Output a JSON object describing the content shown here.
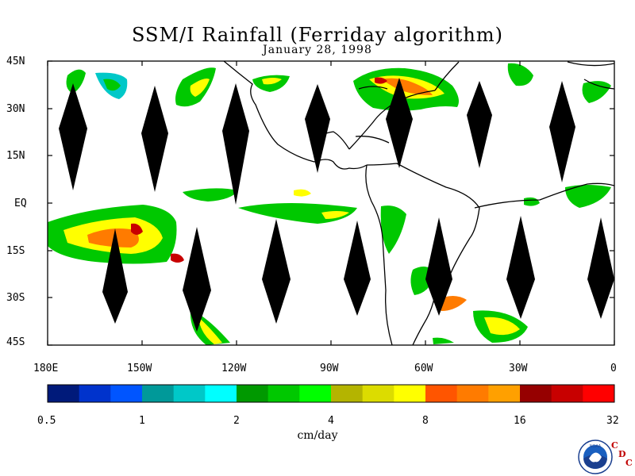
{
  "title": "SSM/I Rainfall (Ferriday algorithm)",
  "date": "January 28, 1998",
  "lat_labels": [
    "45N",
    "30N",
    "15N",
    "EQ",
    "15S",
    "30S",
    "45S"
  ],
  "lon_labels": [
    "180E",
    "150W",
    "120W",
    "90W",
    "60W",
    "30W",
    "0"
  ],
  "colorbar": {
    "colors": [
      "#001a7a",
      "#0033cc",
      "#0055ff",
      "#009999",
      "#00c8c8",
      "#00ffff",
      "#009900",
      "#00c800",
      "#00ff00",
      "#b4b400",
      "#dcdc00",
      "#ffff00",
      "#ff5500",
      "#ff7b00",
      "#ffa000",
      "#960000",
      "#c80000",
      "#ff0000"
    ],
    "tick_labels": [
      "0.5",
      "1",
      "2",
      "4",
      "8",
      "16",
      "32"
    ],
    "units": "cm/day"
  },
  "logo": {
    "agency": "NOAA",
    "icon": "noaa-logo-icon"
  },
  "cdc_letters": [
    "C",
    "D",
    "C"
  ]
}
